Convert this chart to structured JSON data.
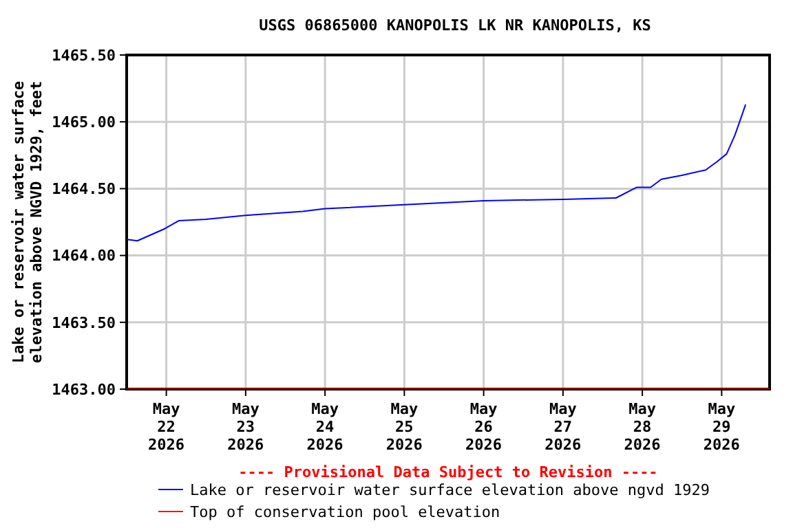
{
  "chart_data": {
    "type": "line",
    "title": "USGS 06865000 KANOPOLIS LK NR KANOPOLIS, KS",
    "ylabel": "Lake or reservoir water surface\nelevation above NGVD 1929, feet",
    "annotations": [
      "---- Provisional Data Subject to Revision ----"
    ],
    "xlim": [
      "2026-05-21T12:00",
      "2026-05-29T14:30"
    ],
    "xticks": [
      {
        "value": "2026-05-22",
        "label": "May\n22\n2026"
      },
      {
        "value": "2026-05-23",
        "label": "May\n23\n2026"
      },
      {
        "value": "2026-05-24",
        "label": "May\n24\n2026"
      },
      {
        "value": "2026-05-25",
        "label": "May\n25\n2026"
      },
      {
        "value": "2026-05-26",
        "label": "May\n26\n2026"
      },
      {
        "value": "2026-05-27",
        "label": "May\n27\n2026"
      },
      {
        "value": "2026-05-28",
        "label": "May\n28\n2026"
      },
      {
        "value": "2026-05-29",
        "label": "May\n29\n2026"
      }
    ],
    "ylim": [
      1463,
      1465.5
    ],
    "yticks": [
      {
        "value": 1463,
        "label": "1463.00"
      },
      {
        "value": 1463.5,
        "label": "1463.50"
      },
      {
        "value": 1464,
        "label": "1464.00"
      },
      {
        "value": 1464.5,
        "label": "1464.50"
      },
      {
        "value": 1465,
        "label": "1465.00"
      },
      {
        "value": 1465.5,
        "label": "1465.50"
      }
    ],
    "grid": true,
    "legend": "bottom",
    "series": [
      {
        "name": "Lake or reservoir water surface elevation above ngvd 1929",
        "color": "#0000ff",
        "x": [
          "2026-05-21T12:00",
          "2026-05-21T15:15",
          "2026-05-21T23:30",
          "2026-05-22T03:45",
          "2026-05-22T12:00",
          "2026-05-23T00:00",
          "2026-05-23T17:15",
          "2026-05-24T00:00",
          "2026-05-25T00:00",
          "2026-05-26T00:00",
          "2026-05-27T00:00",
          "2026-05-27T15:15",
          "2026-05-27T16:00",
          "2026-05-27T22:20",
          "2026-05-28T02:30",
          "2026-05-28T05:45",
          "2026-05-28T12:00",
          "2026-05-28T19:10",
          "2026-05-28T22:30",
          "2026-05-29T01:30",
          "2026-05-29T04:00",
          "2026-05-29T06:00",
          "2026-05-29T07:15"
        ],
        "values": [
          1464.12,
          1464.11,
          1464.2,
          1464.26,
          1464.27,
          1464.3,
          1464.33,
          1464.35,
          1464.38,
          1464.41,
          1464.42,
          1464.43,
          1464.43,
          1464.51,
          1464.51,
          1464.57,
          1464.6,
          1464.64,
          1464.7,
          1464.76,
          1464.9,
          1465.04,
          1465.13
        ]
      },
      {
        "name": "Top of conservation pool elevation",
        "color": "#ff0000",
        "x": [
          "2026-05-21T12:00",
          "2026-05-29T14:30"
        ],
        "values": [
          1463,
          1463
        ]
      }
    ]
  }
}
